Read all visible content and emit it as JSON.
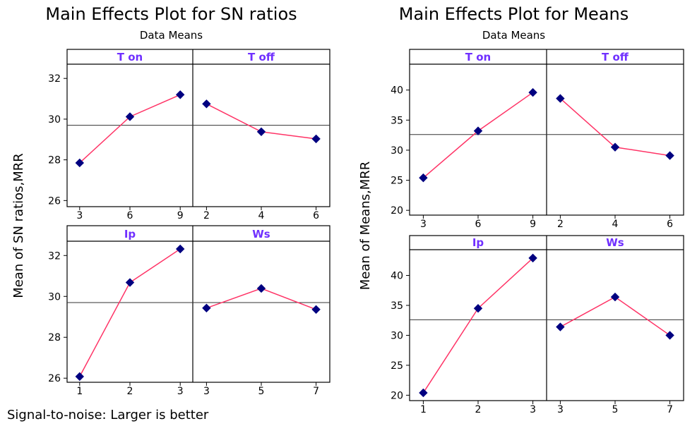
{
  "chart_data": [
    {
      "type": "line",
      "title": "Main Effects Plot for SN ratios",
      "subtitle": "Data Means",
      "ylabel": "Mean of SN ratios,MRR",
      "footnote": "Signal-to-noise: Larger is better",
      "overall_mean": 29.7,
      "colors": {
        "line": "#ff3366",
        "marker": "#000080",
        "panel_title": "#7030ff"
      },
      "panels": [
        {
          "name": "T on",
          "categories": [
            "3",
            "6",
            "9"
          ],
          "values": [
            27.85,
            30.12,
            31.2
          ],
          "ylim": [
            25.7,
            32.7
          ],
          "yticks": [
            26,
            28,
            30,
            32
          ]
        },
        {
          "name": "T off",
          "categories": [
            "2",
            "4",
            "6"
          ],
          "values": [
            30.75,
            29.38,
            29.03
          ],
          "ylim": [
            25.7,
            32.7
          ],
          "yticks": [
            26,
            28,
            30,
            32
          ]
        },
        {
          "name": "Ip",
          "categories": [
            "1",
            "2",
            "3"
          ],
          "values": [
            26.08,
            30.68,
            32.32
          ],
          "ylim": [
            25.8,
            32.7
          ],
          "yticks": [
            26,
            28,
            30,
            32
          ]
        },
        {
          "name": "Ws",
          "categories": [
            "3",
            "5",
            "7"
          ],
          "values": [
            29.43,
            30.39,
            29.36
          ],
          "ylim": [
            25.8,
            32.7
          ],
          "yticks": [
            26,
            28,
            30,
            32
          ]
        }
      ]
    },
    {
      "type": "line",
      "title": "Main Effects Plot for Means",
      "subtitle": "Data Means",
      "ylabel": "Mean of Means,MRR",
      "footnote": "",
      "overall_mean": 32.6,
      "colors": {
        "line": "#ff3366",
        "marker": "#000080",
        "panel_title": "#7030ff"
      },
      "panels": [
        {
          "name": "T on",
          "categories": [
            "3",
            "6",
            "9"
          ],
          "values": [
            25.4,
            33.2,
            39.6
          ],
          "ylim": [
            19.2,
            44.3
          ],
          "yticks": [
            20,
            25,
            30,
            35,
            40
          ]
        },
        {
          "name": "T off",
          "categories": [
            "2",
            "4",
            "6"
          ],
          "values": [
            38.6,
            30.5,
            29.1
          ],
          "ylim": [
            19.2,
            44.3
          ],
          "yticks": [
            20,
            25,
            30,
            35,
            40
          ]
        },
        {
          "name": "Ip",
          "categories": [
            "1",
            "2",
            "3"
          ],
          "values": [
            20.4,
            34.5,
            42.9
          ],
          "ylim": [
            19.1,
            44.3
          ],
          "yticks": [
            20,
            25,
            30,
            35,
            40
          ]
        },
        {
          "name": "Ws",
          "categories": [
            "3",
            "5",
            "7"
          ],
          "values": [
            31.4,
            36.4,
            30.0
          ],
          "ylim": [
            19.1,
            44.3
          ],
          "yticks": [
            20,
            25,
            30,
            35,
            40
          ]
        }
      ]
    }
  ]
}
